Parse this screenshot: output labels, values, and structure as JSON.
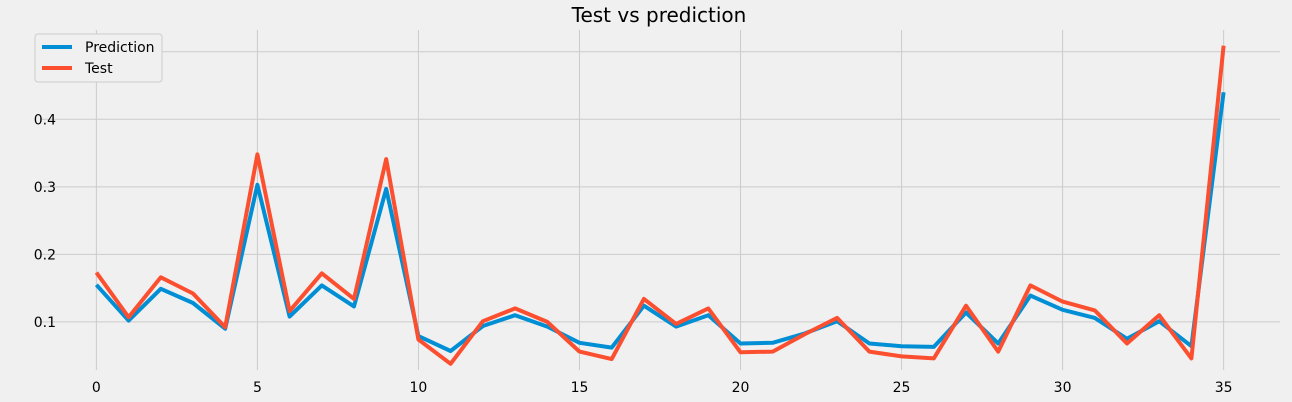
{
  "chart_data": {
    "type": "line",
    "title": "Test  vs prediction",
    "xlabel": "",
    "ylabel": "",
    "xlim": [
      -1.75,
      36.75
    ],
    "ylim": [
      0.0288,
      0.5322
    ],
    "xticks": [
      0,
      5,
      10,
      15,
      20,
      25,
      30,
      35
    ],
    "yticks": [
      0.1,
      0.2,
      0.3,
      0.4,
      0.5
    ],
    "grid": true,
    "legend_position": "top-left",
    "x": [
      0,
      1,
      2,
      3,
      4,
      5,
      6,
      7,
      8,
      9,
      10,
      11,
      12,
      13,
      14,
      15,
      16,
      17,
      18,
      19,
      20,
      21,
      22,
      23,
      24,
      25,
      26,
      27,
      28,
      29,
      30,
      31,
      32,
      33,
      34,
      35
    ],
    "series": [
      {
        "name": "Prediction",
        "color": "#008fd5",
        "values": [
          0.155,
          0.102,
          0.149,
          0.128,
          0.09,
          0.303,
          0.108,
          0.154,
          0.123,
          0.297,
          0.079,
          0.057,
          0.094,
          0.11,
          0.093,
          0.069,
          0.062,
          0.124,
          0.093,
          0.11,
          0.068,
          0.069,
          0.083,
          0.101,
          0.068,
          0.064,
          0.063,
          0.114,
          0.068,
          0.139,
          0.118,
          0.106,
          0.075,
          0.101,
          0.064,
          0.44
        ]
      },
      {
        "name": "Test",
        "color": "#fc4f30",
        "values": [
          0.173,
          0.107,
          0.166,
          0.142,
          0.092,
          0.348,
          0.116,
          0.172,
          0.134,
          0.341,
          0.074,
          0.038,
          0.101,
          0.12,
          0.1,
          0.056,
          0.045,
          0.134,
          0.097,
          0.12,
          0.055,
          0.056,
          0.082,
          0.106,
          0.056,
          0.049,
          0.046,
          0.124,
          0.056,
          0.154,
          0.13,
          0.117,
          0.068,
          0.11,
          0.046,
          0.509
        ]
      }
    ]
  }
}
